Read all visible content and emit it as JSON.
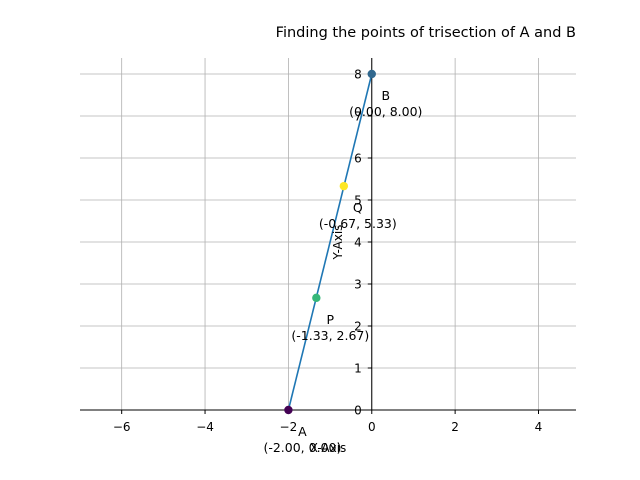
{
  "chart_data": {
    "type": "scatter",
    "title": "Finding the points of trisection of A and B",
    "xlabel": "X-Axis",
    "ylabel": "Y-Axis",
    "xlim": [
      -7,
      4.9
    ],
    "ylim": [
      0,
      8.4
    ],
    "x_ticks": [
      -6,
      -4,
      -2,
      0,
      2,
      4
    ],
    "y_ticks": [
      0,
      1,
      2,
      3,
      4,
      5,
      6,
      7,
      8
    ],
    "x_tick_labels": [
      "−6",
      "−4",
      "−2",
      "0",
      "2",
      "4"
    ],
    "y_tick_labels": [
      "0",
      "1",
      "2",
      "3",
      "4",
      "5",
      "6",
      "7",
      "8"
    ],
    "grid": true,
    "line": {
      "x": [
        -2.0,
        0.0
      ],
      "y": [
        0.0,
        8.0
      ],
      "color": "#1f77b4"
    },
    "points": [
      {
        "name": "A",
        "x": -2.0,
        "y": 0.0,
        "label": "(-2.00, 0.00)",
        "color": "#440154"
      },
      {
        "name": "P",
        "x": -1.33,
        "y": 2.67,
        "label": "(-1.33, 2.67)",
        "color": "#35b779"
      },
      {
        "name": "Q",
        "x": -0.67,
        "y": 5.33,
        "label": "(-0.67, 5.33)",
        "color": "#fde725"
      },
      {
        "name": "B",
        "x": 0.0,
        "y": 8.0,
        "label": "(0.00, 8.00)",
        "color": "#31688e"
      }
    ],
    "colors": {
      "grid": "#b0b0b0",
      "spine": "#000000"
    }
  }
}
